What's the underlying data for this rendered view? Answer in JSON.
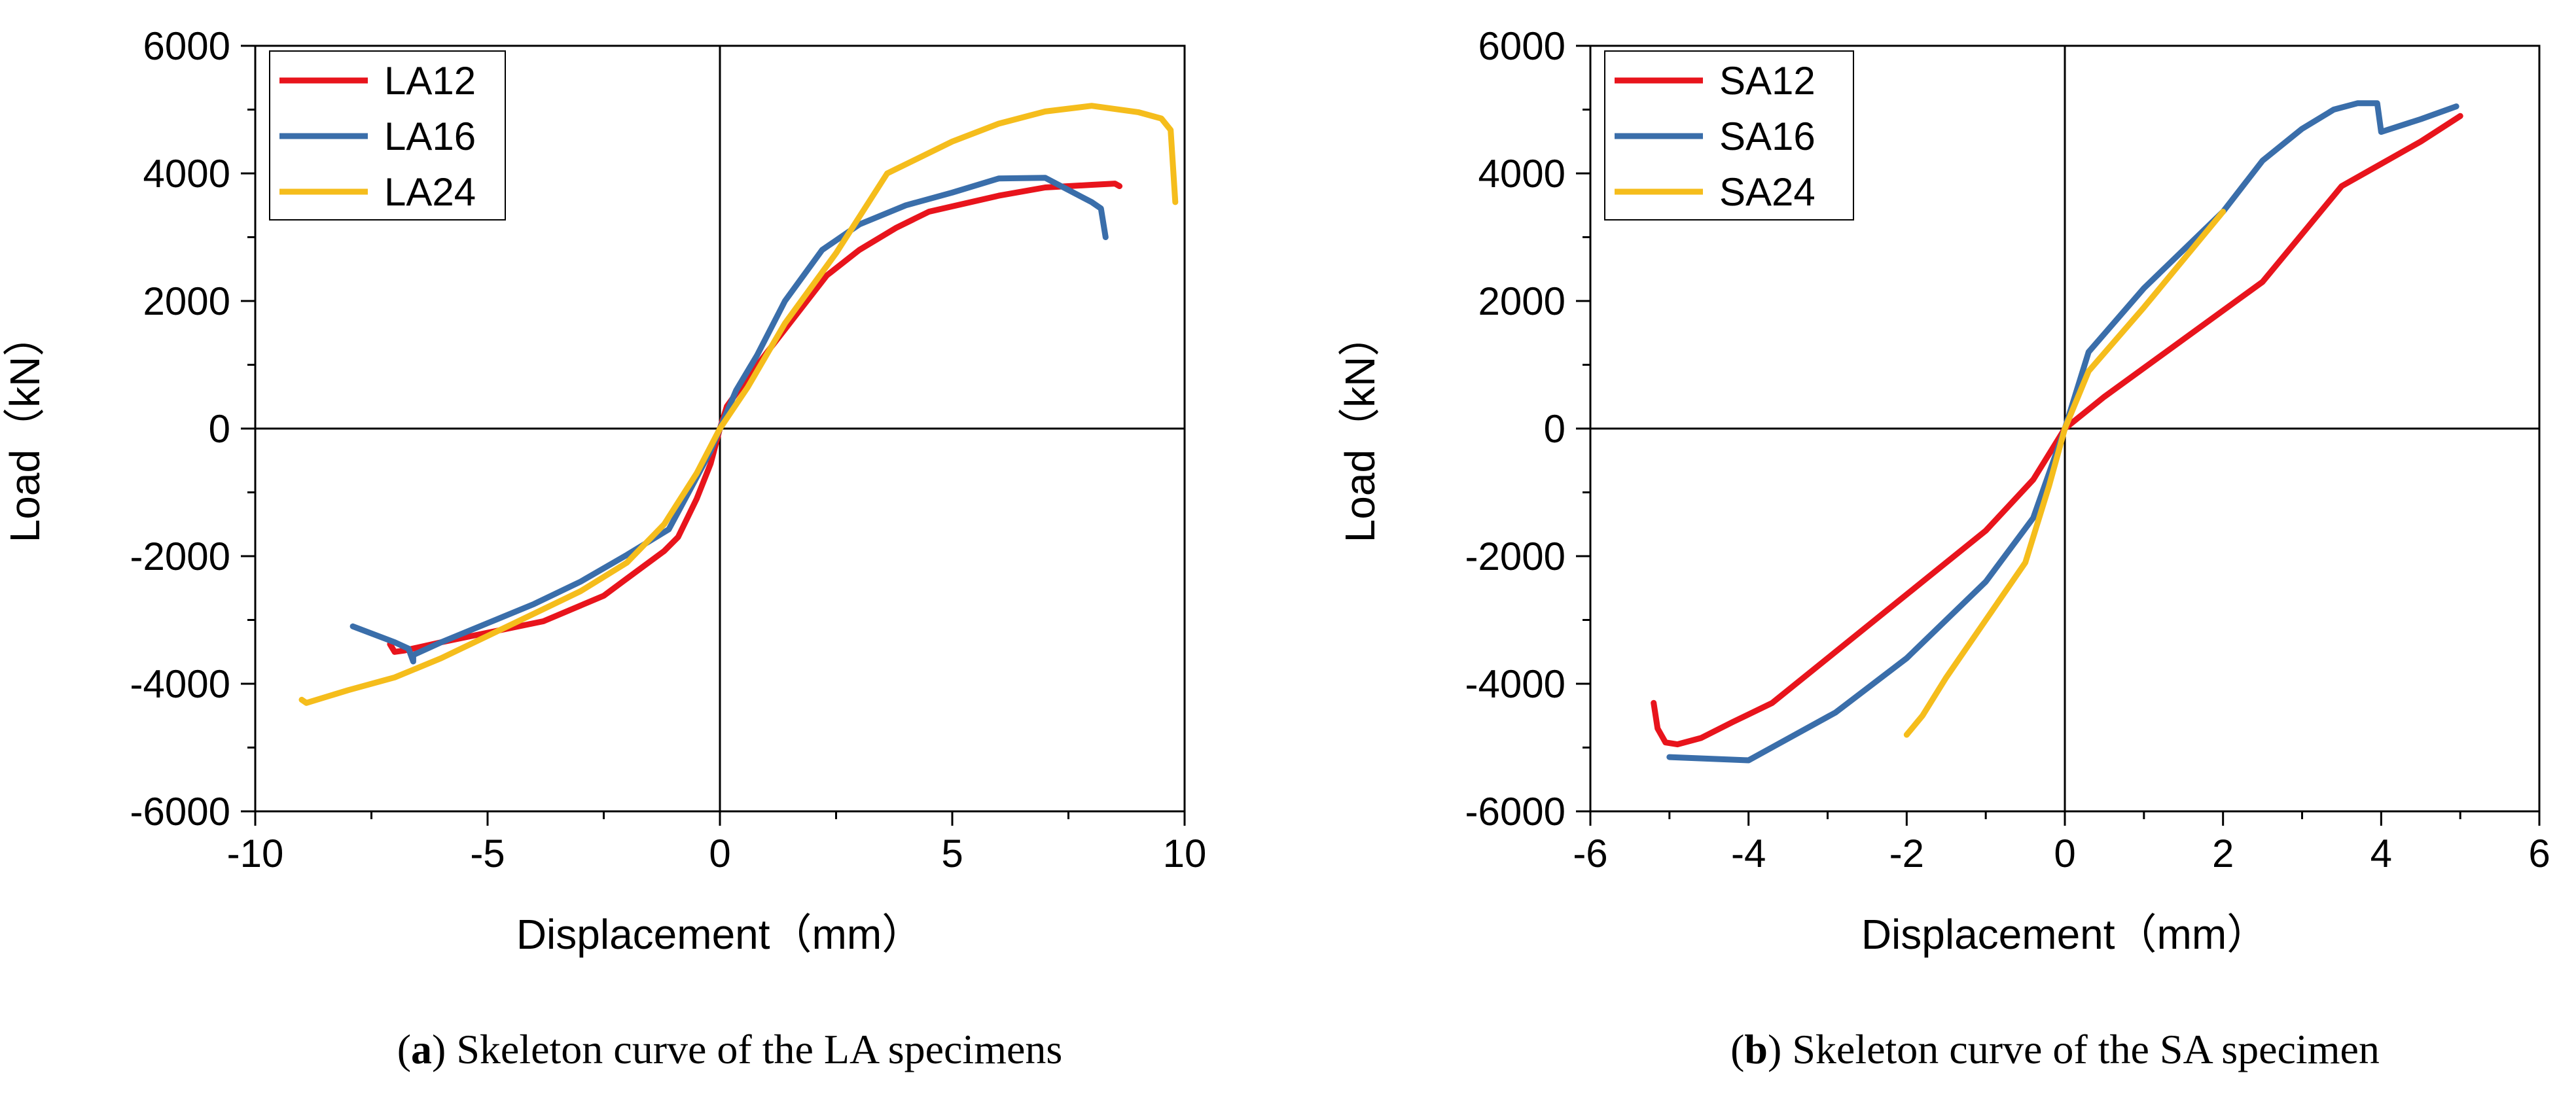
{
  "chart_data": [
    {
      "type": "line",
      "title": "",
      "xlabel": "Displacement（mm）",
      "ylabel": "Load（kN）",
      "xlim": [
        -10,
        10
      ],
      "ylim": [
        -6000,
        6000
      ],
      "xticks": [
        "-10",
        "-5",
        "0",
        "5",
        "10"
      ],
      "yticks": [
        "6000",
        "4000",
        "2000",
        "0",
        "-2000",
        "-4000",
        "-6000"
      ],
      "grid": false,
      "legend_position": "top-left",
      "caption_label": "a",
      "caption_text": "Skeleton curve of the LA specimens",
      "series": [
        {
          "name": "LA12",
          "color": "#e8141c",
          "points": [
            [
              -7.1,
              -3380
            ],
            [
              -7.0,
              -3500
            ],
            [
              -6.8,
              -3480
            ],
            [
              -6.0,
              -3350
            ],
            [
              -5.0,
              -3200
            ],
            [
              -3.8,
              -3020
            ],
            [
              -2.5,
              -2620
            ],
            [
              -2.0,
              -2350
            ],
            [
              -1.2,
              -1920
            ],
            [
              -0.9,
              -1700
            ],
            [
              -0.5,
              -1100
            ],
            [
              -0.2,
              -550
            ],
            [
              0,
              0
            ],
            [
              0.15,
              350
            ],
            [
              0.5,
              700
            ],
            [
              1.0,
              1180
            ],
            [
              1.5,
              1650
            ],
            [
              2.3,
              2400
            ],
            [
              3.0,
              2800
            ],
            [
              3.8,
              3150
            ],
            [
              4.5,
              3400
            ],
            [
              6.0,
              3650
            ],
            [
              7.0,
              3780
            ],
            [
              8.0,
              3820
            ],
            [
              8.5,
              3840
            ],
            [
              8.6,
              3800
            ]
          ]
        },
        {
          "name": "LA16",
          "color": "#3a6eaa",
          "points": [
            [
              -7.9,
              -3100
            ],
            [
              -7.0,
              -3350
            ],
            [
              -6.7,
              -3450
            ],
            [
              -6.6,
              -3650
            ],
            [
              -6.6,
              -3550
            ],
            [
              -6.0,
              -3350
            ],
            [
              -5.0,
              -3050
            ],
            [
              -4.0,
              -2750
            ],
            [
              -3.0,
              -2400
            ],
            [
              -2.0,
              -1980
            ],
            [
              -1.1,
              -1580
            ],
            [
              -0.6,
              -900
            ],
            [
              -0.2,
              -350
            ],
            [
              0,
              0
            ],
            [
              0.35,
              600
            ],
            [
              0.8,
              1150
            ],
            [
              1.4,
              2000
            ],
            [
              2.2,
              2800
            ],
            [
              3.0,
              3200
            ],
            [
              4.0,
              3500
            ],
            [
              5.0,
              3700
            ],
            [
              6.0,
              3920
            ],
            [
              7.0,
              3930
            ],
            [
              8.0,
              3550
            ],
            [
              8.2,
              3450
            ],
            [
              8.3,
              3000
            ]
          ]
        },
        {
          "name": "LA24",
          "color": "#f5bd1c",
          "points": [
            [
              -9.0,
              -4250
            ],
            [
              -8.9,
              -4300
            ],
            [
              -8.0,
              -4100
            ],
            [
              -7.0,
              -3900
            ],
            [
              -6.0,
              -3600
            ],
            [
              -5.0,
              -3250
            ],
            [
              -4.0,
              -2900
            ],
            [
              -3.0,
              -2550
            ],
            [
              -2.0,
              -2100
            ],
            [
              -1.2,
              -1500
            ],
            [
              -0.5,
              -700
            ],
            [
              0,
              0
            ],
            [
              0.6,
              650
            ],
            [
              1.4,
              1650
            ],
            [
              2.5,
              2750
            ],
            [
              3.6,
              4000
            ],
            [
              5.0,
              4500
            ],
            [
              6.0,
              4780
            ],
            [
              7.0,
              4970
            ],
            [
              8.0,
              5060
            ],
            [
              9.0,
              4960
            ],
            [
              9.5,
              4860
            ],
            [
              9.7,
              4680
            ],
            [
              9.8,
              3550
            ]
          ]
        }
      ]
    },
    {
      "type": "line",
      "title": "",
      "xlabel": "Displacement（mm）",
      "ylabel": "Load（kN）",
      "xlim": [
        -6,
        6
      ],
      "ylim": [
        -6000,
        6000
      ],
      "xticks": [
        "-6",
        "-4",
        "-2",
        "0",
        "2",
        "4",
        "6"
      ],
      "yticks": [
        "6000",
        "4000",
        "2000",
        "0",
        "-2000",
        "-4000",
        "-6000"
      ],
      "grid": false,
      "legend_position": "top-left",
      "caption_label": "b",
      "caption_text": "Skeleton curve of the SA specimen",
      "series": [
        {
          "name": "SA12",
          "color": "#e8141c",
          "points": [
            [
              -5.2,
              -4300
            ],
            [
              -5.15,
              -4700
            ],
            [
              -5.05,
              -4920
            ],
            [
              -4.9,
              -4950
            ],
            [
              -4.6,
              -4850
            ],
            [
              -4.2,
              -4600
            ],
            [
              -3.7,
              -4300
            ],
            [
              -3.0,
              -3600
            ],
            [
              -2.0,
              -2600
            ],
            [
              -1.0,
              -1600
            ],
            [
              -0.4,
              -800
            ],
            [
              0,
              0
            ],
            [
              0.5,
              500
            ],
            [
              1.5,
              1400
            ],
            [
              2.5,
              2300
            ],
            [
              3.5,
              3800
            ],
            [
              4.0,
              4150
            ],
            [
              4.5,
              4500
            ],
            [
              5.0,
              4900
            ]
          ]
        },
        {
          "name": "SA16",
          "color": "#3a6eaa",
          "points": [
            [
              -5.0,
              -5150
            ],
            [
              -4.0,
              -5200
            ],
            [
              -2.9,
              -4450
            ],
            [
              -2.0,
              -3600
            ],
            [
              -1.0,
              -2400
            ],
            [
              -0.4,
              -1400
            ],
            [
              0,
              0
            ],
            [
              0.3,
              1200
            ],
            [
              1.0,
              2200
            ],
            [
              2.0,
              3400
            ],
            [
              2.5,
              4200
            ],
            [
              3.0,
              4700
            ],
            [
              3.4,
              5000
            ],
            [
              3.7,
              5100
            ],
            [
              3.95,
              5100
            ],
            [
              4.0,
              4650
            ],
            [
              4.5,
              4850
            ],
            [
              4.95,
              5050
            ]
          ]
        },
        {
          "name": "SA24",
          "color": "#f5bd1c",
          "points": [
            [
              -2.0,
              -4800
            ],
            [
              -1.8,
              -4500
            ],
            [
              -1.5,
              -3900
            ],
            [
              -1.0,
              -3000
            ],
            [
              -0.5,
              -2100
            ],
            [
              -0.2,
              -900
            ],
            [
              0,
              0
            ],
            [
              0.3,
              900
            ],
            [
              1.0,
              1900
            ],
            [
              2.0,
              3400
            ]
          ]
        }
      ]
    }
  ]
}
